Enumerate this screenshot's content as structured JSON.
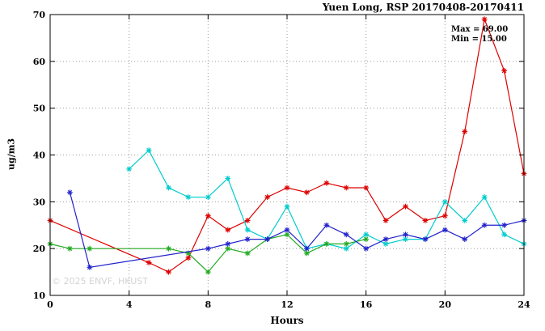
{
  "chart_data": {
    "type": "line",
    "title": "Yuen Long, RSP 20170408-20170411",
    "xlabel": "Hours",
    "ylabel": "ug/m3",
    "xlim": [
      0,
      24
    ],
    "ylim": [
      10,
      70
    ],
    "xticks": [
      0,
      4,
      8,
      12,
      16,
      20,
      24
    ],
    "yticks": [
      10,
      20,
      30,
      40,
      50,
      60,
      70
    ],
    "grid": true,
    "legend_position": "none",
    "annotations": {
      "max": "Max = 69.00",
      "min": "Min = 15.00"
    },
    "watermark": "© 2025 ENVF, HKUST",
    "colors": {
      "frame": "#000000",
      "grid": "#999999",
      "red_series": "#dd0000",
      "cyan_series": "#00cccc",
      "green_series": "#22aa22",
      "blue_series": "#2222cc"
    },
    "series": [
      {
        "name": "series-red",
        "color": "#dd0000",
        "points": [
          [
            0,
            26
          ],
          [
            5,
            17
          ],
          [
            6,
            15
          ],
          [
            7,
            18
          ],
          [
            8,
            27
          ],
          [
            9,
            24
          ],
          [
            10,
            26
          ],
          [
            11,
            31
          ],
          [
            12,
            33
          ],
          [
            13,
            32
          ],
          [
            14,
            34
          ],
          [
            15,
            33
          ],
          [
            16,
            33
          ],
          [
            17,
            26
          ],
          [
            18,
            29
          ],
          [
            19,
            26
          ],
          [
            20,
            27
          ],
          [
            21,
            45
          ],
          [
            22,
            69
          ],
          [
            23,
            58
          ],
          [
            24,
            36
          ]
        ]
      },
      {
        "name": "series-cyan",
        "color": "#00cccc",
        "points": [
          [
            4,
            37
          ],
          [
            5,
            41
          ],
          [
            6,
            33
          ],
          [
            7,
            31
          ],
          [
            8,
            31
          ],
          [
            9,
            35
          ],
          [
            10,
            24
          ],
          [
            11,
            22
          ],
          [
            12,
            29
          ],
          [
            13,
            20
          ],
          [
            14,
            21
          ],
          [
            15,
            20
          ],
          [
            16,
            23
          ],
          [
            17,
            21
          ],
          [
            18,
            22
          ],
          [
            19,
            22
          ],
          [
            20,
            30
          ],
          [
            21,
            26
          ],
          [
            22,
            31
          ],
          [
            23,
            23
          ],
          [
            24,
            21
          ]
        ]
      },
      {
        "name": "series-green",
        "color": "#22aa22",
        "points": [
          [
            0,
            21
          ],
          [
            1,
            20
          ],
          [
            2,
            20
          ],
          [
            6,
            20
          ],
          [
            7,
            19
          ],
          [
            8,
            15
          ],
          [
            9,
            20
          ],
          [
            10,
            19
          ],
          [
            11,
            22
          ],
          [
            12,
            23
          ],
          [
            13,
            19
          ],
          [
            14,
            21
          ],
          [
            15,
            21
          ],
          [
            16,
            22
          ]
        ]
      },
      {
        "name": "series-blue",
        "color": "#2222cc",
        "points": [
          [
            1,
            32
          ],
          [
            2,
            16
          ],
          [
            8,
            20
          ],
          [
            9,
            21
          ],
          [
            10,
            22
          ],
          [
            11,
            22
          ],
          [
            12,
            24
          ],
          [
            13,
            20
          ],
          [
            14,
            25
          ],
          [
            15,
            23
          ],
          [
            16,
            20
          ],
          [
            17,
            22
          ],
          [
            18,
            23
          ],
          [
            19,
            22
          ],
          [
            20,
            24
          ],
          [
            21,
            22
          ],
          [
            22,
            25
          ],
          [
            23,
            25
          ],
          [
            24,
            26
          ]
        ]
      }
    ]
  }
}
